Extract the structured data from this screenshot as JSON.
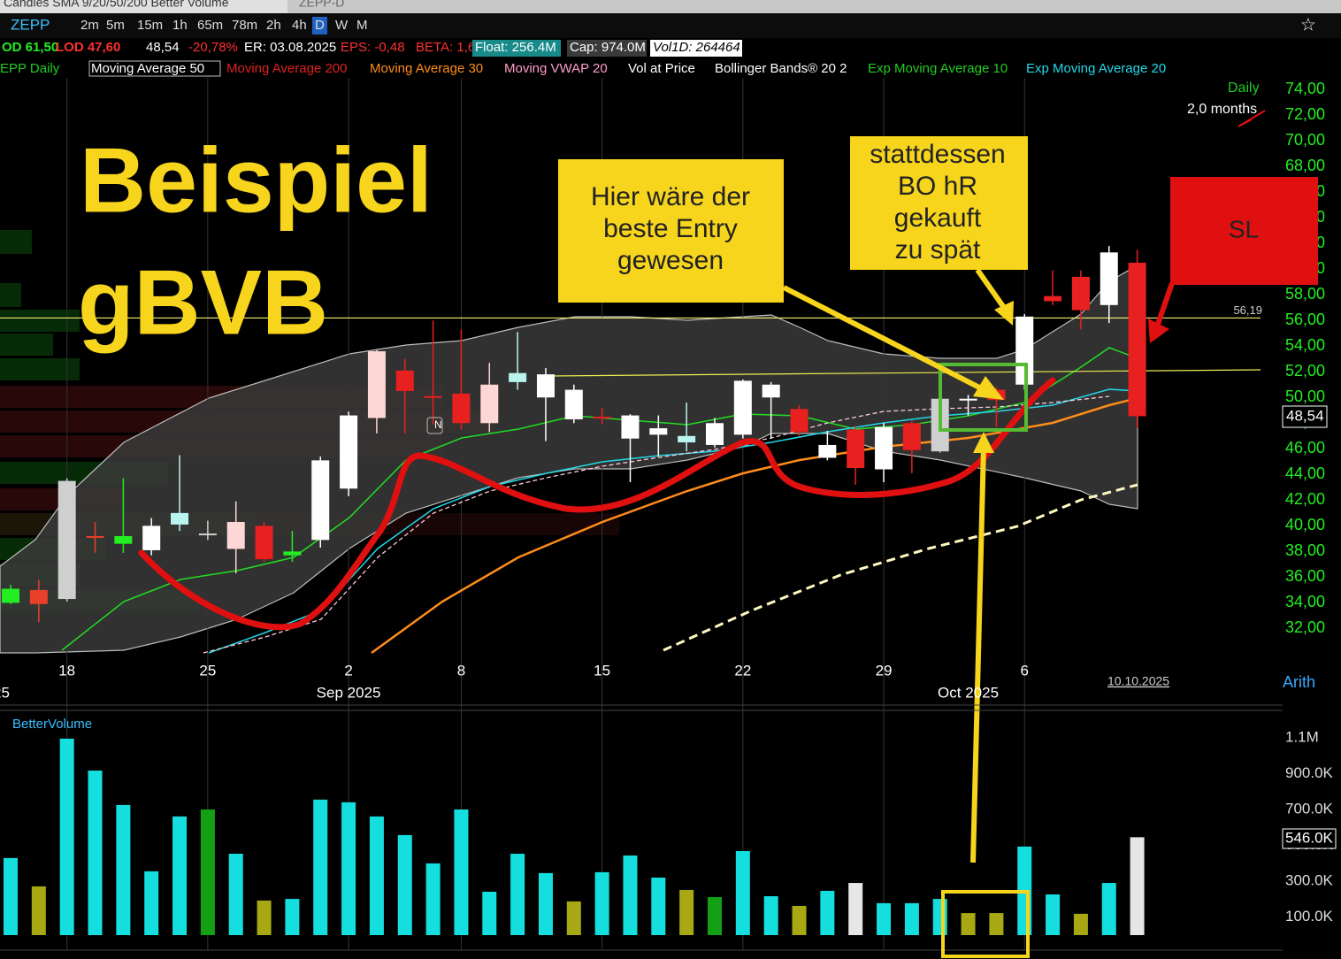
{
  "tabs": {
    "title": "Candles SMA 9/20/50/200 Better Volume",
    "second": "ZEPP-D"
  },
  "toolbar": {
    "symbol": "ZEPP",
    "intervals": [
      "2m",
      "5m",
      "15m",
      "1h",
      "65m",
      "78m",
      "2h",
      "4h",
      "D",
      "W",
      "M"
    ]
  },
  "quote": [
    {
      "text": "OD 61,50",
      "color": "#22ee22"
    },
    {
      "text": "LOD 47,60",
      "color": "#ff3030"
    },
    {
      "text": "48,54",
      "color": "#ffffff"
    },
    {
      "text": "-20,78%",
      "color": "#ff3030"
    },
    {
      "text": "ER: 03.08.2025",
      "color": "#ffffff"
    },
    {
      "text": "EPS: -0,48",
      "color": "#ff3030"
    },
    {
      "text": "BETA: 1,64",
      "color": "#ff3030"
    },
    {
      "text": "Float: 256.4M",
      "color": "#ffffff",
      "bg": "#188a8a"
    },
    {
      "text": "Cap: 974.0M",
      "color": "#ffffff",
      "bg": "#3a3a3a"
    },
    {
      "text": "Vol1D: 264464",
      "color": "#000000",
      "bg": "#ffffff"
    }
  ],
  "indicators": [
    {
      "name": "EPP Daily",
      "color": "#22cc22"
    },
    {
      "name": "Moving Average 50",
      "color": "#ffffff"
    },
    {
      "name": "Moving Average 200",
      "color": "#e02020"
    },
    {
      "name": "Moving Average 30",
      "color": "#ff8c1a"
    },
    {
      "name": "Moving VWAP 20",
      "color": "#ff9ec8"
    },
    {
      "name": "Vol at Price",
      "color": "#ffffff"
    },
    {
      "name": "Bollinger Bands® 20 2",
      "color": "#ffffff"
    },
    {
      "name": "Exp Moving Average 10",
      "color": "#22cc22"
    },
    {
      "name": "Exp Moving Average 20",
      "color": "#22d8e8"
    }
  ],
  "chart_data": [
    {
      "type": "candlestick",
      "categories": [
        null,
        null,
        "18",
        null,
        null,
        null,
        null,
        "25",
        null,
        null,
        null,
        null,
        "2",
        null,
        null,
        null,
        "8",
        null,
        null,
        null,
        null,
        "15",
        null,
        null,
        null,
        null,
        "22",
        null,
        null,
        null,
        null,
        "29",
        null,
        null,
        null,
        null,
        "6",
        null,
        null,
        null,
        null
      ],
      "month_labels": [
        "25",
        "Sep 2025",
        "Oct 2025"
      ],
      "open": [
        34.0,
        35.0,
        34.3,
        39.2,
        38.6,
        38.1,
        40.1,
        39.4,
        38.2,
        40.0,
        37.7,
        38.9,
        42.9,
        48.4,
        52.1,
        50.1,
        50.3,
        48.0,
        51.2,
        50.0,
        48.3,
        48.5,
        46.8,
        47.1,
        46.5,
        46.3,
        47.1,
        50.0,
        49.1,
        46.3,
        47.5,
        44.4,
        48.0,
        45.8,
        49.8,
        50.6,
        51.0,
        57.9,
        59.4,
        57.2,
        60.5
      ],
      "high": [
        35.4,
        35.8,
        43.7,
        40.3,
        43.7,
        40.6,
        45.5,
        40.4,
        41.9,
        40.3,
        39.6,
        45.4,
        48.9,
        53.7,
        53.0,
        56.0,
        55.3,
        52.7,
        55.1,
        52.3,
        51.0,
        49.2,
        48.7,
        48.6,
        49.6,
        48.4,
        51.4,
        51.2,
        49.4,
        47.4,
        47.8,
        48.0,
        48.2,
        50.3,
        50.2,
        50.8,
        56.5,
        59.9,
        59.9,
        61.8,
        61.5
      ],
      "low": [
        33.9,
        32.5,
        34.1,
        37.9,
        37.9,
        37.7,
        39.6,
        38.9,
        36.3,
        37.2,
        37.2,
        38.3,
        42.3,
        47.2,
        47.2,
        47.9,
        47.5,
        47.3,
        50.6,
        46.6,
        48.0,
        47.9,
        43.4,
        45.4,
        45.8,
        46.1,
        46.8,
        46.8,
        47.0,
        45.1,
        43.2,
        43.4,
        44.1,
        45.7,
        48.6,
        47.7,
        50.6,
        57.2,
        55.3,
        55.8,
        47.6
      ],
      "close": [
        35.1,
        33.9,
        43.5,
        39.2,
        39.2,
        40.0,
        41.0,
        39.4,
        40.3,
        37.4,
        38.0,
        45.1,
        48.6,
        53.6,
        50.5,
        50.0,
        48.0,
        51.0,
        51.9,
        51.8,
        50.6,
        48.4,
        48.6,
        47.6,
        47.0,
        48.0,
        51.3,
        51.0,
        47.3,
        45.3,
        44.5,
        47.7,
        45.9,
        49.9,
        49.9,
        49.8,
        56.3,
        57.5,
        56.8,
        61.3,
        48.54
      ],
      "colors": [
        "#22ee22",
        "#e8402a",
        "#cfcfcf",
        "#e8402a",
        "#22ee22",
        "#ffffff",
        "#b9f5ee",
        "#cfcfcf",
        "#ffd6d6",
        "#e82020",
        "#22ee22",
        "#ffffff",
        "#ffffff",
        "#ffd6d6",
        "#e82020",
        "#e82020",
        "#e82020",
        "#ffd6d6",
        "#b9f5ee",
        "#ffffff",
        "#ffffff",
        "#e82020",
        "#ffffff",
        "#ffffff",
        "#b9f5ee",
        "#ffffff",
        "#ffffff",
        "#ffffff",
        "#e82020",
        "#ffffff",
        "#e82020",
        "#ffffff",
        "#e82020",
        "#cfcfcf",
        "#ffffff",
        "#e82020",
        "#ffffff",
        "#e82020",
        "#e82020",
        "#ffffff",
        "#e82020"
      ],
      "ylim": [
        30.1,
        74.9
      ],
      "yticks": [
        {
          "value": 74,
          "label": "74,00"
        },
        {
          "value": 72,
          "label": "72,00"
        },
        {
          "value": 70,
          "label": "70,00"
        },
        {
          "value": 68,
          "label": "68,00"
        },
        {
          "value": 66,
          "label": "66,00"
        },
        {
          "value": 64,
          "label": "64,00"
        },
        {
          "value": 62,
          "label": "62,00"
        },
        {
          "value": 60,
          "label": "60,00"
        },
        {
          "value": 58,
          "label": "58,00"
        },
        {
          "value": 56,
          "label": "56,00"
        },
        {
          "value": 54,
          "label": "54,00"
        },
        {
          "value": 52,
          "label": "52,00"
        },
        {
          "value": 50,
          "label": "50,00"
        },
        {
          "value": 48,
          "label": "48,00"
        },
        {
          "value": 46,
          "label": "46,00"
        },
        {
          "value": 44,
          "label": "44,00"
        },
        {
          "value": 42,
          "label": "42,00"
        },
        {
          "value": 40,
          "label": "40,00"
        },
        {
          "value": 38,
          "label": "38,00"
        },
        {
          "value": 36,
          "label": "36,00"
        },
        {
          "value": 34,
          "label": "34,00"
        },
        {
          "value": 32,
          "label": "32,00"
        }
      ],
      "tick_color": "#22ee22",
      "hlines": [
        {
          "value": 56.19,
          "label": "56,19",
          "color": "#f0f070"
        }
      ]
    },
    {
      "type": "bar",
      "values": [
        430000,
        272000,
        1096000,
        918000,
        726000,
        356000,
        662000,
        701000,
        454000,
        193000,
        202000,
        756000,
        741000,
        662000,
        558000,
        400000,
        701000,
        242000,
        454000,
        346000,
        188000,
        351000,
        444000,
        321000,
        252000,
        212000,
        469000,
        217000,
        163000,
        247000,
        291000,
        178000,
        178000,
        202000,
        123000,
        123000,
        494000,
        227000,
        119000,
        291000,
        546000
      ],
      "colors": [
        "#14dede",
        "#a8a814",
        "#14dede",
        "#14dede",
        "#14dede",
        "#14dede",
        "#14dede",
        "#14a014",
        "#14dede",
        "#a8a814",
        "#14dede",
        "#14dede",
        "#14dede",
        "#14dede",
        "#14dede",
        "#14dede",
        "#14dede",
        "#14dede",
        "#14dede",
        "#14dede",
        "#a8a814",
        "#14dede",
        "#14dede",
        "#14dede",
        "#a8a814",
        "#14a014",
        "#14dede",
        "#14dede",
        "#a8a814",
        "#14dede",
        "#e6e6e6",
        "#14dede",
        "#14dede",
        "#14dede",
        "#a8a814",
        "#a8a814",
        "#14dede",
        "#14dede",
        "#a8a814",
        "#14dede",
        "#e6e6e6"
      ],
      "ylim": [
        0,
        1150000
      ],
      "yticks": [
        {
          "value": 1100000,
          "label": "1.1M"
        },
        {
          "value": 900000,
          "label": "900.0K"
        },
        {
          "value": 700000,
          "label": "700.0K"
        },
        {
          "value": 500000,
          "label": "500.0K"
        },
        {
          "value": 300000,
          "label": "300.0K"
        },
        {
          "value": 100000,
          "label": "100.0K"
        }
      ]
    }
  ],
  "annotations": {
    "title_1": "Beispiel",
    "title_2": "gBVB",
    "entry_note": [
      "Hier wäre der",
      "beste Entry",
      "gewesen"
    ],
    "breakout_note": [
      "stattdessen",
      "BO hR",
      "gekauft",
      "zu spät"
    ],
    "stop_loss": "SL"
  },
  "ui": {
    "period": "Daily",
    "range": "2,0 months",
    "last_date": "10.10.2025",
    "scale_mode": "Arith",
    "price_tag": "48,54",
    "volume_indicator": "BetterVolume",
    "volume_tag": "546.0K"
  }
}
